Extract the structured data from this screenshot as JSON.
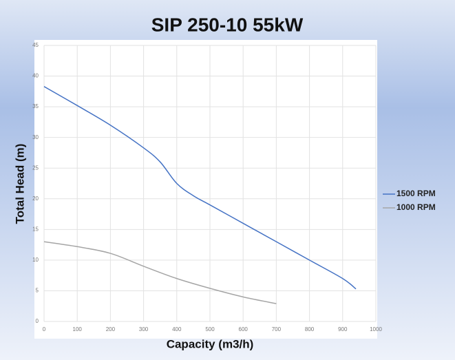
{
  "chart_data": {
    "type": "line",
    "title": "SIP 250-10 55kW",
    "x_label": "Capacity (m3/h)",
    "y_label": "Total Head (m)",
    "xlim": [
      0,
      1000
    ],
    "xticks": [
      0,
      100,
      200,
      300,
      400,
      500,
      600,
      700,
      800,
      900,
      1000
    ],
    "ylim": [
      0,
      45
    ],
    "yticks": [
      0,
      5,
      10,
      15,
      20,
      25,
      30,
      35,
      40,
      45
    ],
    "grid": true,
    "legend": "right",
    "series": [
      {
        "name": "1500 RPM",
        "color": "#4472c4",
        "x": [
          0,
          100,
          200,
          300,
          350,
          400,
          450,
          500,
          600,
          700,
          800,
          900,
          940
        ],
        "values": [
          38.3,
          35.2,
          32,
          28.3,
          26,
          22.5,
          20.5,
          19,
          16,
          13,
          10,
          7,
          5.3
        ]
      },
      {
        "name": "1000 RPM",
        "color": "#a5a5a5",
        "x": [
          0,
          100,
          200,
          300,
          400,
          500,
          600,
          700
        ],
        "values": [
          13,
          12.2,
          11.1,
          9,
          7,
          5.4,
          4,
          2.9
        ]
      }
    ]
  }
}
